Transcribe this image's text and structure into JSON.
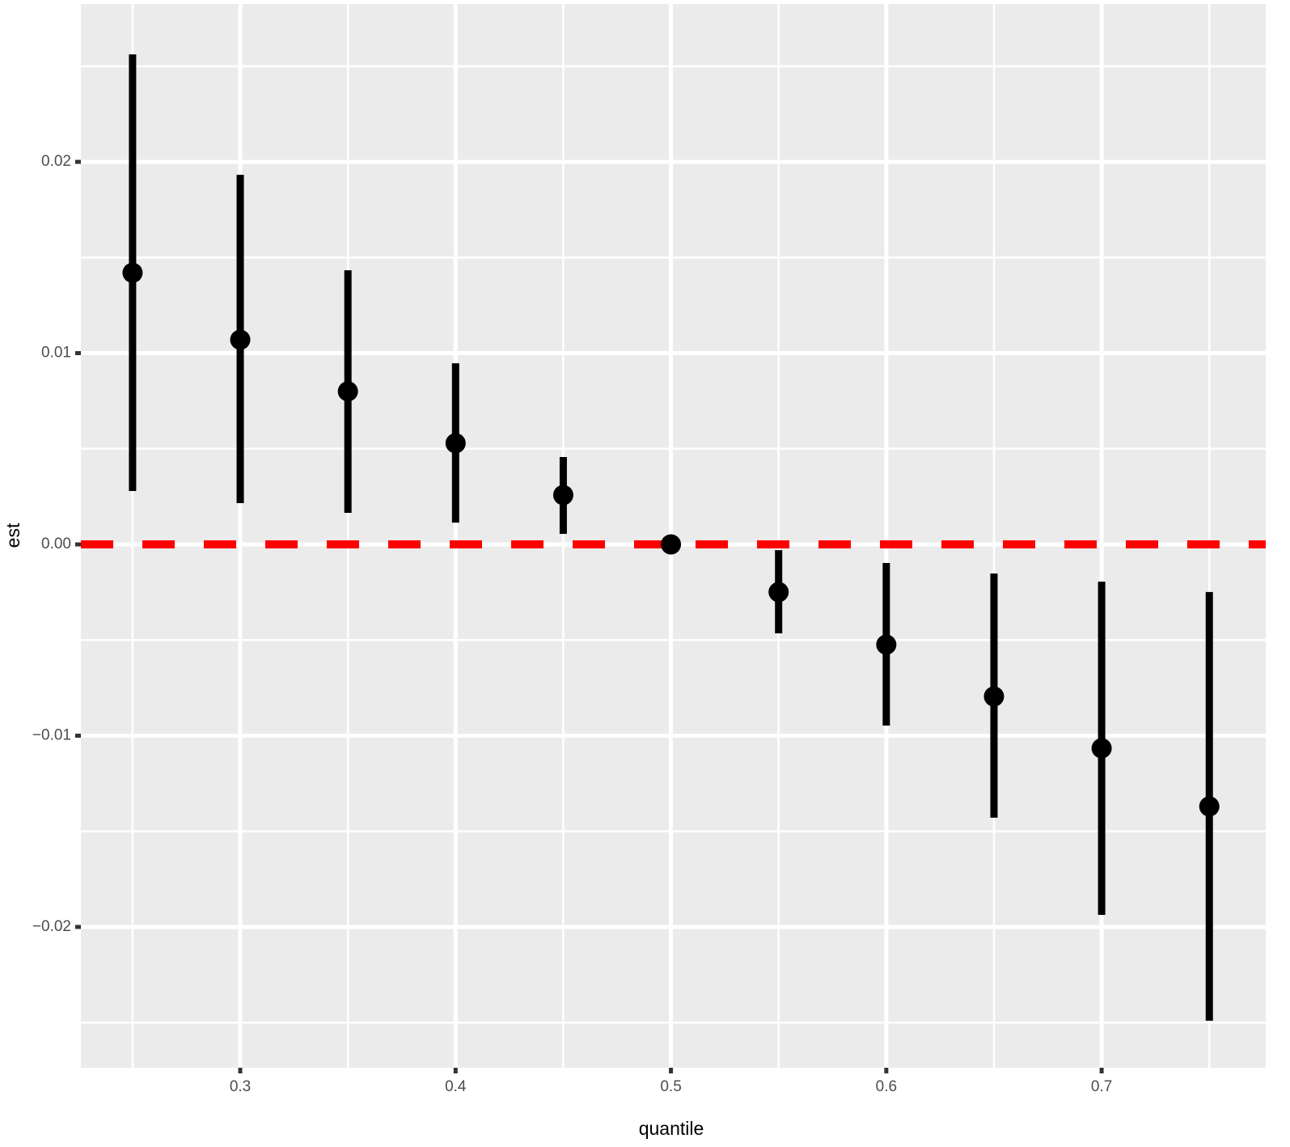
{
  "chart_data": {
    "type": "errorbar",
    "x_label": "quantile",
    "y_label": "est",
    "x": [
      0.25,
      0.3,
      0.35,
      0.4,
      0.45,
      0.5,
      0.55,
      0.6,
      0.65,
      0.7,
      0.75
    ],
    "values": [
      0.0142,
      0.0107,
      0.008,
      0.00529,
      0.00258,
      0,
      -0.00249,
      -0.00524,
      -0.00795,
      -0.01066,
      -0.0137
    ],
    "lower": [
      0.00279,
      0.00216,
      0.00165,
      0.00114,
      0.00055,
      0,
      -0.00465,
      -0.00947,
      -0.01429,
      -0.01937,
      -0.0249
    ],
    "upper": [
      0.02562,
      0.01932,
      0.01433,
      0.00947,
      0.00457,
      0,
      -0.0003,
      -0.00097,
      -0.00152,
      -0.00195,
      -0.00249
    ],
    "color": "#000000",
    "xlim": [
      0.226,
      0.7762
    ],
    "ylim": [
      -0.02736,
      0.02825
    ],
    "xticks": [
      0.3,
      0.4,
      0.5,
      0.6,
      0.7
    ],
    "yticks": [
      {
        "value": -0.02,
        "label": "−0.02"
      },
      {
        "value": -0.01,
        "label": "−0.01"
      },
      {
        "value": 0,
        "label": "0.00"
      },
      0.01,
      0.02
    ],
    "grid": true,
    "hline": 0,
    "hline_color": "#ff0000"
  }
}
